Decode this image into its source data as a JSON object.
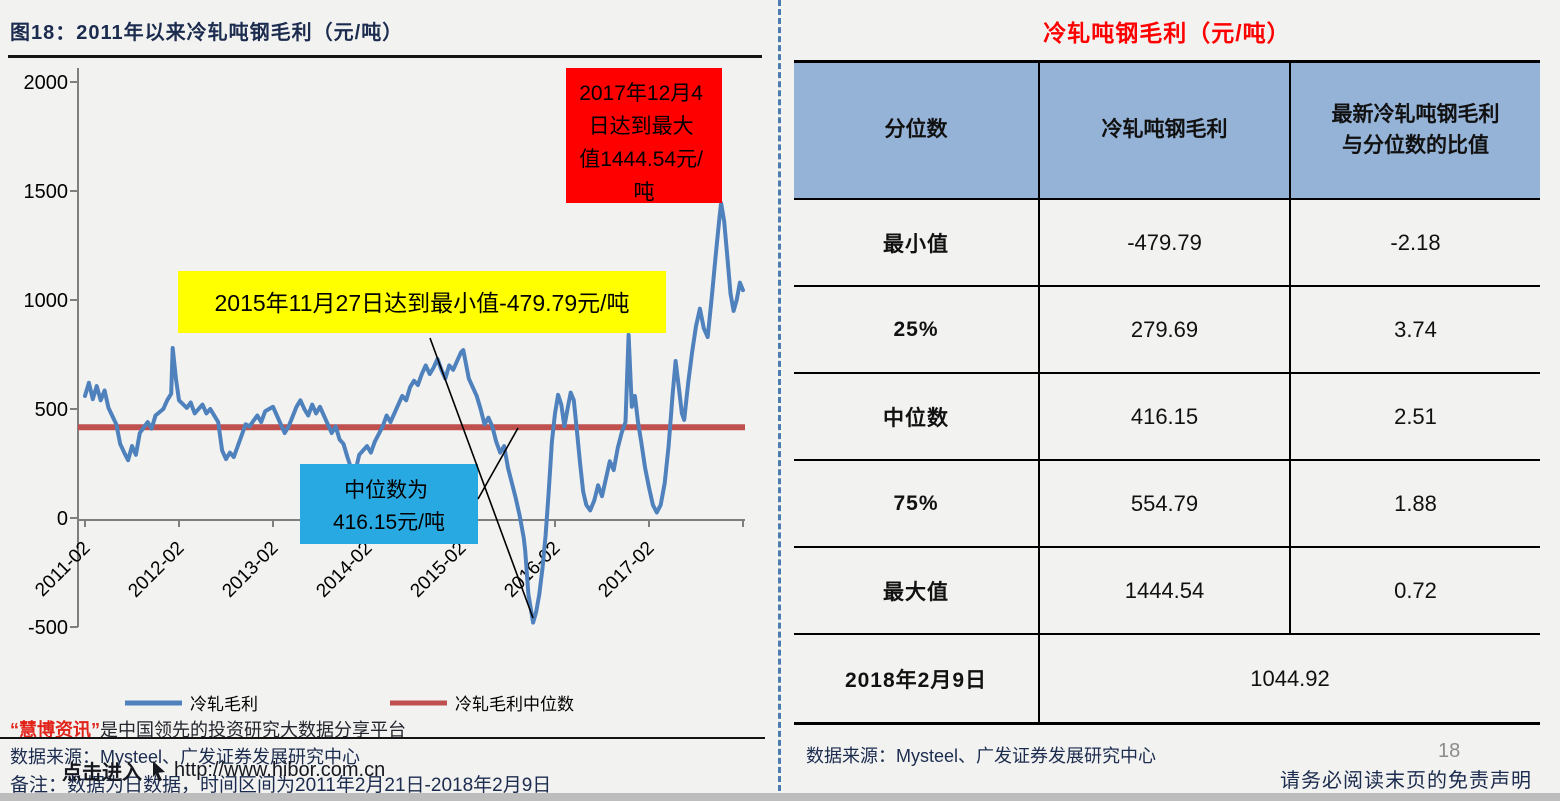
{
  "figure": {
    "caption": "图18：2011年以来冷轧吨钢毛利（元/吨）",
    "footer": {
      "hibor_brand": "“慧博资讯”",
      "hibor_tagline": "是中国领先的投资研究大数据分享平台",
      "source": "数据来源：Mysteel、广发证券发展研究中心",
      "note": "备注：数据为日数据，时间区间为2011年2月21日-2018年2月9日",
      "overlay_action": "点击进入",
      "overlay_url": "http://www.hibor.com.cn"
    }
  },
  "chart_data": {
    "type": "line",
    "title": "2011年以来冷轧吨钢毛利（元/吨）",
    "ylabel": "",
    "xlabel": "",
    "ylim": [
      -500,
      2000
    ],
    "grid": false,
    "legend_position": "bottom",
    "y_ticks": [
      "2000",
      "1500",
      "1000",
      "500",
      "0",
      "-500"
    ],
    "x_ticks": [
      "2011-02",
      "2012-02",
      "2013-02",
      "2014-02",
      "2015-02",
      "2016-02",
      "2017-02"
    ],
    "x_range": [
      "2011-02",
      "2018-02"
    ],
    "legend": [
      "冷轧毛利",
      "冷轧毛利中位数"
    ],
    "colors": {
      "line": "#4F81BD",
      "median": "#C0504D"
    },
    "series": [
      {
        "name": "冷轧毛利",
        "unit": "元/吨",
        "x_unit": "months since 2011-02",
        "points": [
          [
            0,
            560
          ],
          [
            0.5,
            620
          ],
          [
            1,
            545
          ],
          [
            1.5,
            605
          ],
          [
            2,
            540
          ],
          [
            2.5,
            585
          ],
          [
            3,
            505
          ],
          [
            4,
            430
          ],
          [
            4.5,
            340
          ],
          [
            5,
            300
          ],
          [
            5.5,
            265
          ],
          [
            6,
            330
          ],
          [
            6.5,
            290
          ],
          [
            7,
            390
          ],
          [
            8,
            440
          ],
          [
            8.5,
            410
          ],
          [
            9,
            470
          ],
          [
            10,
            500
          ],
          [
            10.5,
            540
          ],
          [
            11,
            570
          ],
          [
            11.2,
            780
          ],
          [
            11.6,
            640
          ],
          [
            12,
            540
          ],
          [
            13,
            505
          ],
          [
            13.5,
            530
          ],
          [
            14,
            480
          ],
          [
            15,
            520
          ],
          [
            15.5,
            480
          ],
          [
            16,
            500
          ],
          [
            17,
            440
          ],
          [
            17.5,
            310
          ],
          [
            18,
            270
          ],
          [
            18.5,
            300
          ],
          [
            19,
            280
          ],
          [
            20,
            380
          ],
          [
            20.5,
            430
          ],
          [
            21,
            420
          ],
          [
            22,
            470
          ],
          [
            22.5,
            440
          ],
          [
            23,
            490
          ],
          [
            24,
            510
          ],
          [
            24.5,
            470
          ],
          [
            25,
            430
          ],
          [
            25.5,
            390
          ],
          [
            26,
            420
          ],
          [
            27,
            510
          ],
          [
            27.5,
            540
          ],
          [
            28,
            500
          ],
          [
            28.5,
            470
          ],
          [
            29,
            520
          ],
          [
            29.5,
            480
          ],
          [
            30,
            510
          ],
          [
            31,
            430
          ],
          [
            31.5,
            390
          ],
          [
            32,
            420
          ],
          [
            32.5,
            360
          ],
          [
            33,
            340
          ],
          [
            33.5,
            280
          ],
          [
            34,
            225
          ],
          [
            34.5,
            210
          ],
          [
            35,
            290
          ],
          [
            36,
            330
          ],
          [
            36.5,
            300
          ],
          [
            37,
            350
          ],
          [
            38,
            420
          ],
          [
            38.5,
            470
          ],
          [
            39,
            440
          ],
          [
            40,
            520
          ],
          [
            40.5,
            560
          ],
          [
            41,
            540
          ],
          [
            41.5,
            600
          ],
          [
            42,
            630
          ],
          [
            42.5,
            610
          ],
          [
            43,
            660
          ],
          [
            43.5,
            700
          ],
          [
            44,
            660
          ],
          [
            44.5,
            690
          ],
          [
            45,
            730
          ],
          [
            45.5,
            680
          ],
          [
            46,
            640
          ],
          [
            46.5,
            700
          ],
          [
            47,
            680
          ],
          [
            47.5,
            720
          ],
          [
            48,
            760
          ],
          [
            48.3,
            770
          ],
          [
            49,
            640
          ],
          [
            50,
            560
          ],
          [
            50.5,
            500
          ],
          [
            51,
            430
          ],
          [
            51.5,
            460
          ],
          [
            52,
            420
          ],
          [
            52.5,
            350
          ],
          [
            53,
            300
          ],
          [
            53.5,
            330
          ],
          [
            54,
            230
          ],
          [
            54.5,
            160
          ],
          [
            55,
            90
          ],
          [
            55.5,
            10
          ],
          [
            56,
            -90
          ],
          [
            56.2,
            -150
          ],
          [
            56.6,
            -350
          ],
          [
            57.2,
            -479.79
          ],
          [
            57.6,
            -430
          ],
          [
            58,
            -350
          ],
          [
            58.4,
            -230
          ],
          [
            58.8,
            -80
          ],
          [
            59.2,
            120
          ],
          [
            59.6,
            350
          ],
          [
            60,
            480
          ],
          [
            60.4,
            565
          ],
          [
            60.8,
            520
          ],
          [
            61.2,
            420
          ],
          [
            61.6,
            500
          ],
          [
            62,
            575
          ],
          [
            62.4,
            540
          ],
          [
            62.8,
            400
          ],
          [
            63.2,
            250
          ],
          [
            63.6,
            120
          ],
          [
            64,
            60
          ],
          [
            64.5,
            35
          ],
          [
            65,
            80
          ],
          [
            65.5,
            150
          ],
          [
            66,
            100
          ],
          [
            66.5,
            180
          ],
          [
            67,
            260
          ],
          [
            67.5,
            220
          ],
          [
            68,
            320
          ],
          [
            68.5,
            390
          ],
          [
            69,
            440
          ],
          [
            69.4,
            840
          ],
          [
            69.8,
            510
          ],
          [
            70.2,
            560
          ],
          [
            70.6,
            440
          ],
          [
            71,
            350
          ],
          [
            71.5,
            230
          ],
          [
            72,
            140
          ],
          [
            72.5,
            60
          ],
          [
            73,
            25
          ],
          [
            73.5,
            60
          ],
          [
            74,
            160
          ],
          [
            74.5,
            330
          ],
          [
            75,
            560
          ],
          [
            75.4,
            720
          ],
          [
            75.8,
            600
          ],
          [
            76.2,
            480
          ],
          [
            76.5,
            450
          ],
          [
            77,
            620
          ],
          [
            77.5,
            760
          ],
          [
            78,
            880
          ],
          [
            78.5,
            960
          ],
          [
            79,
            870
          ],
          [
            79.5,
            830
          ],
          [
            80,
            1010
          ],
          [
            80.5,
            1200
          ],
          [
            81,
            1380
          ],
          [
            81.2,
            1444.54
          ],
          [
            81.6,
            1360
          ],
          [
            82,
            1200
          ],
          [
            82.4,
            1030
          ],
          [
            82.8,
            950
          ],
          [
            83.2,
            1000
          ],
          [
            83.6,
            1080
          ],
          [
            84,
            1044.92
          ]
        ]
      },
      {
        "name": "冷轧毛利中位数",
        "value": 416.15
      }
    ],
    "annotations": {
      "max": {
        "bg": "#FF0000",
        "lines": [
          "2017年12月4",
          "日达到最大",
          "值1444.54元/",
          "吨"
        ]
      },
      "min": {
        "bg": "#FFFF00",
        "text": "2015年11月27日达到最小值-479.79元/吨"
      },
      "median": {
        "bg": "#29A9E2",
        "lines": [
          "中位数为",
          "416.15元/吨"
        ]
      }
    },
    "stats": {
      "max": 1444.54,
      "max_date": "2017-12-04",
      "min": -479.79,
      "min_date": "2015-11-27",
      "median": 416.15
    }
  },
  "table": {
    "title": "冷轧吨钢毛利（元/吨）",
    "headers": {
      "col1": "分位数",
      "col2": "冷轧吨钢毛利",
      "col3_line1": "最新冷轧吨钢毛利",
      "col3_line2": "与分位数的比值"
    },
    "rows": [
      {
        "label": "最小值",
        "value": "-479.79",
        "ratio": "-2.18"
      },
      {
        "label": "25%",
        "value": "279.69",
        "ratio": "3.74"
      },
      {
        "label": "中位数",
        "value": "416.15",
        "ratio": "2.51"
      },
      {
        "label": "75%",
        "value": "554.79",
        "ratio": "1.88"
      },
      {
        "label": "最大值",
        "value": "1444.54",
        "ratio": "0.72"
      }
    ],
    "latest_row": {
      "label": "2018年2月9日",
      "value": "1044.92"
    },
    "source": "数据来源：Mysteel、广发证券发展研究中心"
  },
  "page": {
    "number": "18",
    "disclaimer": "请务必阅读末页的免责声明"
  }
}
